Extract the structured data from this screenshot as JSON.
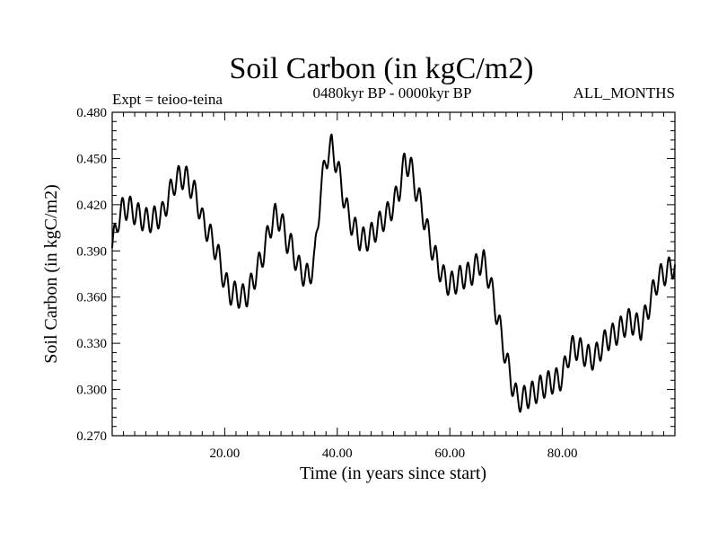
{
  "chart_data": {
    "type": "line",
    "title": "Soil Carbon (in kgC/m2)",
    "subtitle": "0480kyr BP - 0000kyr BP",
    "left_note": "Expt = teioo-teina",
    "right_note": "ALL_MONTHS",
    "xlabel": "Time (in years since start)",
    "ylabel": "Soil Carbon (in kgC/m2)",
    "xlim": [
      0,
      100
    ],
    "ylim": [
      0.27,
      0.48
    ],
    "x_ticks": [
      20,
      40,
      60,
      80
    ],
    "x_tick_labels": [
      "20.00",
      "40.00",
      "60.00",
      "80.00"
    ],
    "y_ticks": [
      0.27,
      0.3,
      0.33,
      0.36,
      0.39,
      0.42,
      0.45,
      0.48
    ],
    "y_tick_labels": [
      "0.270",
      "0.300",
      "0.330",
      "0.360",
      "0.390",
      "0.420",
      "0.450",
      "0.480"
    ],
    "grid": false,
    "series": [
      {
        "name": "Soil Carbon",
        "color": "#000000",
        "oscillation_amplitude": 0.008,
        "oscillations_per_unit": 0.7,
        "x": [
          0,
          1,
          2,
          3,
          4,
          5,
          6,
          7,
          8,
          9,
          10,
          11,
          12,
          13,
          14,
          15,
          16,
          17,
          18,
          19,
          20,
          21,
          22,
          23,
          24,
          25,
          26,
          27,
          28,
          29,
          30,
          31,
          32,
          33,
          34,
          35,
          36,
          37,
          38,
          39,
          40,
          41,
          42,
          43,
          44,
          45,
          46,
          47,
          48,
          49,
          50,
          51,
          52,
          53,
          54,
          55,
          56,
          57,
          58,
          59,
          60,
          61,
          62,
          63,
          64,
          65,
          66,
          67,
          68,
          69,
          70,
          71,
          72,
          73,
          74,
          75,
          76,
          77,
          78,
          79,
          80,
          81,
          82,
          83,
          84,
          85,
          86,
          87,
          88,
          89,
          90,
          91,
          92,
          93,
          94,
          95,
          96,
          97,
          98,
          99,
          100
        ],
        "values": [
          0.392,
          0.41,
          0.418,
          0.418,
          0.415,
          0.412,
          0.41,
          0.41,
          0.412,
          0.414,
          0.425,
          0.434,
          0.438,
          0.438,
          0.432,
          0.425,
          0.41,
          0.403,
          0.395,
          0.385,
          0.37,
          0.363,
          0.362,
          0.36,
          0.362,
          0.37,
          0.38,
          0.39,
          0.405,
          0.413,
          0.41,
          0.397,
          0.392,
          0.38,
          0.375,
          0.373,
          0.385,
          0.428,
          0.45,
          0.458,
          0.445,
          0.428,
          0.412,
          0.405,
          0.398,
          0.397,
          0.4,
          0.405,
          0.41,
          0.414,
          0.42,
          0.43,
          0.448,
          0.445,
          0.43,
          0.418,
          0.403,
          0.39,
          0.38,
          0.372,
          0.368,
          0.37,
          0.373,
          0.374,
          0.376,
          0.382,
          0.383,
          0.372,
          0.355,
          0.338,
          0.32,
          0.305,
          0.293,
          0.294,
          0.296,
          0.298,
          0.301,
          0.303,
          0.305,
          0.306,
          0.308,
          0.322,
          0.328,
          0.326,
          0.323,
          0.32,
          0.322,
          0.328,
          0.333,
          0.335,
          0.338,
          0.342,
          0.345,
          0.342,
          0.34,
          0.35,
          0.362,
          0.372,
          0.375,
          0.378,
          0.381
        ]
      }
    ]
  }
}
